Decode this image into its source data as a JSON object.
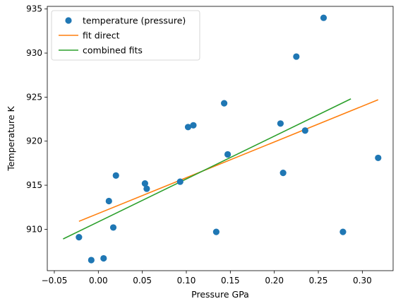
{
  "chart_data": {
    "type": "scatter",
    "xlabel": "Pressure GPa",
    "ylabel": "Temperature K",
    "xlim": [
      -0.058,
      0.335
    ],
    "ylim": [
      905.3,
      935.3
    ],
    "xticks": [
      -0.05,
      0.0,
      0.05,
      0.1,
      0.15,
      0.2,
      0.25,
      0.3
    ],
    "xtick_labels": [
      "−0.05",
      "0.00",
      "0.05",
      "0.10",
      "0.15",
      "0.20",
      "0.25",
      "0.30"
    ],
    "yticks": [
      910,
      915,
      920,
      925,
      930,
      935
    ],
    "ytick_labels": [
      "910",
      "915",
      "920",
      "925",
      "930",
      "935"
    ],
    "legend_position": "top-left",
    "grid": false,
    "series": [
      {
        "name": "temperature (pressure)",
        "kind": "scatter",
        "color": "#1f77b4",
        "points": [
          [
            -0.022,
            909.1
          ],
          [
            -0.008,
            906.5
          ],
          [
            0.006,
            906.7
          ],
          [
            0.012,
            913.2
          ],
          [
            0.017,
            910.2
          ],
          [
            0.02,
            916.1
          ],
          [
            0.053,
            915.2
          ],
          [
            0.055,
            914.6
          ],
          [
            0.093,
            915.4
          ],
          [
            0.102,
            921.6
          ],
          [
            0.108,
            921.8
          ],
          [
            0.134,
            909.7
          ],
          [
            0.143,
            924.3
          ],
          [
            0.147,
            918.5
          ],
          [
            0.207,
            922.0
          ],
          [
            0.21,
            916.4
          ],
          [
            0.225,
            929.6
          ],
          [
            0.235,
            921.2
          ],
          [
            0.256,
            934.0
          ],
          [
            0.278,
            909.7
          ],
          [
            0.318,
            918.1
          ]
        ]
      },
      {
        "name": "fit direct",
        "kind": "line",
        "color": "#ff7f0e",
        "points": [
          [
            -0.022,
            910.9
          ],
          [
            0.318,
            924.7
          ]
        ]
      },
      {
        "name": "combined fits",
        "kind": "line",
        "color": "#2ca02c",
        "points": [
          [
            -0.04,
            908.9
          ],
          [
            0.287,
            924.8
          ]
        ]
      }
    ]
  }
}
